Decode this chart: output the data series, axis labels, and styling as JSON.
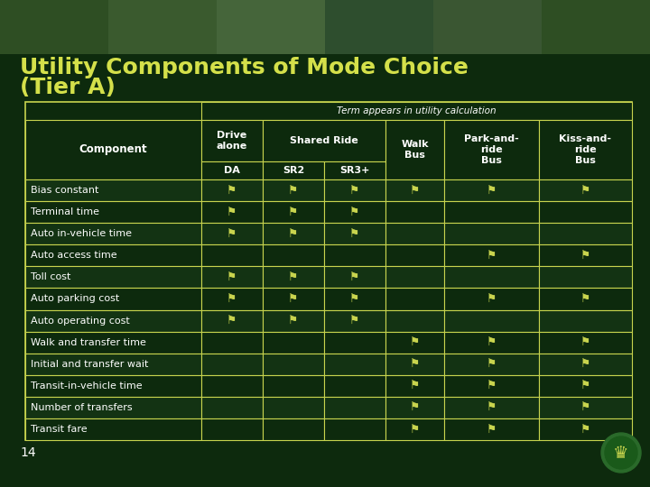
{
  "title_line1": "Utility Components of Mode Choice",
  "title_line2": "(Tier A)",
  "title_color": "#d4e04a",
  "bg_color": "#0d2a0d",
  "table_bg_dark": "#0d2a0d",
  "table_bg_light": "#133313",
  "header_bg": "#0d2a0d",
  "border_color": "#c8d44e",
  "text_color": "#ffffff",
  "header_text_color": "#ffffff",
  "check_color": "#c8d44e",
  "header_top": "Term appears in utility calculation",
  "row_labels": [
    "Bias constant",
    "Terminal time",
    "Auto in-vehicle time",
    "Auto access time",
    "Toll cost",
    "Auto parking cost",
    "Auto operating cost",
    "Walk and transfer time",
    "Initial and transfer wait",
    "Transit-in-vehicle time",
    "Number of transfers",
    "Transit fare"
  ],
  "checks": [
    [
      true,
      true,
      true,
      true,
      true,
      true
    ],
    [
      true,
      true,
      true,
      false,
      false,
      false
    ],
    [
      true,
      true,
      true,
      false,
      false,
      false
    ],
    [
      false,
      false,
      false,
      false,
      true,
      true
    ],
    [
      true,
      true,
      true,
      false,
      false,
      false
    ],
    [
      true,
      true,
      true,
      false,
      true,
      true
    ],
    [
      true,
      true,
      true,
      false,
      false,
      false
    ],
    [
      false,
      false,
      false,
      true,
      true,
      true
    ],
    [
      false,
      false,
      false,
      true,
      true,
      true
    ],
    [
      false,
      false,
      false,
      true,
      true,
      true
    ],
    [
      false,
      false,
      false,
      true,
      true,
      true
    ],
    [
      false,
      false,
      false,
      true,
      true,
      true
    ]
  ],
  "footer_num": "14",
  "photo_strip_color": "#3a5a3a",
  "logo_color": "#2a6a2a",
  "logo_inner": "#c8d44e"
}
